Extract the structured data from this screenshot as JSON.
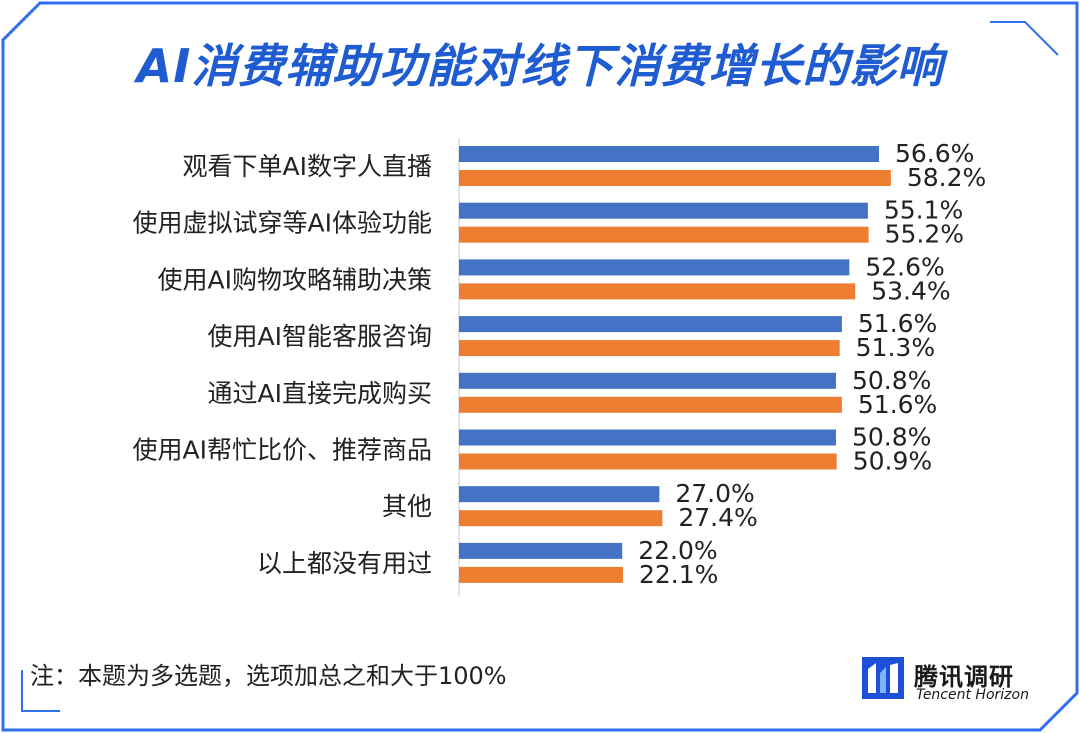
{
  "title": "AI消费辅助功能对线下消费增长的影响",
  "note": "注：本题为多选题，选项加总之和大于100%",
  "brand": {
    "name_cn": "腾讯调研",
    "name_en": "Tencent Horizon",
    "logo_icon": "tencent-horizon-logo-icon"
  },
  "colors": {
    "frame": "#2f6ff0",
    "title": "#1f5bd1",
    "series_blue": "#4472c4",
    "series_orange": "#ed7d31"
  },
  "chart_data": {
    "type": "bar",
    "orientation": "horizontal",
    "title": "AI消费辅助功能对线下消费增长的影响",
    "categories": [
      "观看下单AI数字人直播",
      "使用虚拟试穿等AI体验功能",
      "使用AI购物攻略辅助决策",
      "使用AI智能客服咨询",
      "通过AI直接完成购买",
      "使用AI帮忙比价、推荐商品",
      "其他",
      "以上都没有用过"
    ],
    "series": [
      {
        "name": "series-1",
        "color": "#4472c4",
        "values": [
          56.6,
          55.1,
          52.6,
          51.6,
          50.8,
          50.8,
          27.0,
          22.0
        ]
      },
      {
        "name": "series-2",
        "color": "#ed7d31",
        "values": [
          58.2,
          55.2,
          53.4,
          51.3,
          51.6,
          50.9,
          27.4,
          22.1
        ]
      }
    ],
    "value_suffix": "%",
    "xlim": [
      0,
      60
    ],
    "legend": "none",
    "grid": false
  }
}
